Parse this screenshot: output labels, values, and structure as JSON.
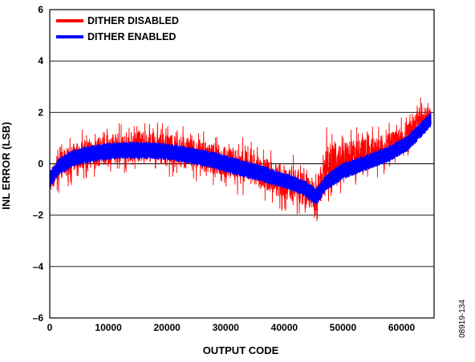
{
  "chart_data": {
    "type": "line",
    "xlabel": "OUTPUT CODE",
    "ylabel": "INL ERROR (LSB)",
    "xlim": [
      0,
      65535
    ],
    "ylim": [
      -6,
      6
    ],
    "x_ticks": [
      0,
      10000,
      20000,
      30000,
      40000,
      50000,
      60000
    ],
    "y_ticks": [
      -6,
      -4,
      -2,
      0,
      2,
      4,
      6
    ],
    "y_tick_labels": [
      "–6",
      "–4",
      "–2",
      "0",
      "2",
      "4",
      "6"
    ],
    "grid": "horizontal",
    "legend_position": "top-left",
    "figure_id": "08919-134",
    "series": [
      {
        "name": "DITHER DISABLED",
        "color": "#ff0000",
        "x": [
          0,
          2000,
          5000,
          8000,
          12000,
          16000,
          20000,
          24000,
          28000,
          32000,
          36000,
          40000,
          43000,
          45500,
          47000,
          50000,
          54000,
          58000,
          61000,
          63000,
          65000
        ],
        "y_low": [
          -1.5,
          -1.0,
          -0.7,
          -0.6,
          -0.4,
          -0.4,
          -0.5,
          -0.7,
          -0.9,
          -1.2,
          -1.5,
          -1.9,
          -2.1,
          -2.4,
          -1.8,
          -1.2,
          -0.8,
          -0.3,
          0.2,
          0.8,
          1.4
        ],
        "y_high": [
          0.2,
          0.9,
          1.4,
          1.5,
          1.7,
          1.8,
          1.6,
          1.5,
          1.3,
          1.1,
          0.8,
          0.5,
          0.2,
          -0.1,
          1.5,
          1.4,
          1.5,
          1.6,
          1.9,
          2.6,
          2.4
        ]
      },
      {
        "name": "DITHER ENABLED",
        "color": "#0000ff",
        "x": [
          0,
          1500,
          4000,
          8000,
          12000,
          16000,
          20000,
          24000,
          28000,
          32000,
          36000,
          40000,
          43000,
          45500,
          47000,
          50000,
          54000,
          58000,
          61000,
          63000,
          65000
        ],
        "y_low": [
          -0.95,
          -0.45,
          -0.1,
          0.1,
          0.2,
          0.2,
          0.15,
          0.0,
          -0.2,
          -0.45,
          -0.7,
          -0.95,
          -1.2,
          -1.6,
          -1.05,
          -0.6,
          -0.25,
          0.1,
          0.5,
          0.95,
          1.45
        ],
        "y_high": [
          -0.3,
          0.2,
          0.55,
          0.75,
          0.85,
          0.85,
          0.8,
          0.65,
          0.45,
          0.2,
          -0.05,
          -0.35,
          -0.6,
          -0.95,
          -0.45,
          0.05,
          0.35,
          0.7,
          1.1,
          1.55,
          2.0
        ]
      }
    ]
  }
}
